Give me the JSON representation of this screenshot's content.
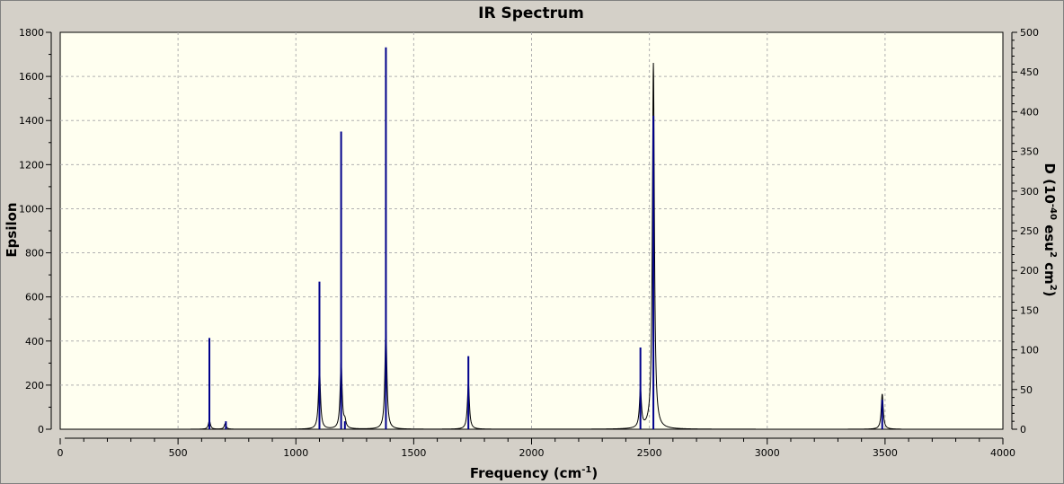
{
  "chart_data": {
    "type": "line",
    "title": "IR Spectrum",
    "xlabel": "Frequency (cm",
    "xlabel_sup": "-1",
    "xlabel_end": ")",
    "ylabel_left": "Epsilon",
    "ylabel_right": {
      "prefix": "D (10",
      "sup1": "-40",
      "mid": " esu",
      "sup2": "2",
      "mid2": " cm",
      "sup3": "2",
      "suffix": ")"
    },
    "xlim": [
      0,
      4000
    ],
    "ylim_left": [
      0,
      1800
    ],
    "ylim_right": [
      0,
      500
    ],
    "x_ticks": [
      0,
      500,
      1000,
      1500,
      2000,
      2500,
      3000,
      3500,
      4000
    ],
    "y_ticks_left": [
      0,
      200,
      400,
      600,
      800,
      1000,
      1200,
      1400,
      1600,
      1800
    ],
    "y_ticks_right": [
      0,
      50,
      100,
      150,
      200,
      250,
      300,
      350,
      400,
      450,
      500
    ],
    "grid": true,
    "series": [
      {
        "kind": "epsilon_curve",
        "axis": "left",
        "range": [
          315,
          3570
        ],
        "peaks": [
          {
            "x": 633,
            "y": 40
          },
          {
            "x": 700,
            "y": 25
          },
          {
            "x": 1100,
            "y": 280
          },
          {
            "x": 1192,
            "y": 305
          },
          {
            "x": 1208,
            "y": 30
          },
          {
            "x": 1382,
            "y": 460
          },
          {
            "x": 1732,
            "y": 210
          },
          {
            "x": 2462,
            "y": 175
          },
          {
            "x": 2517,
            "y": 1660
          },
          {
            "x": 3488,
            "y": 160
          }
        ]
      },
      {
        "kind": "dipole_sticks",
        "axis": "right",
        "sticks": [
          {
            "x": 633,
            "y": 115
          },
          {
            "x": 703,
            "y": 10
          },
          {
            "x": 1100,
            "y": 186
          },
          {
            "x": 1192,
            "y": 375
          },
          {
            "x": 1208,
            "y": 10
          },
          {
            "x": 1382,
            "y": 481
          },
          {
            "x": 1732,
            "y": 92
          },
          {
            "x": 2462,
            "y": 103
          },
          {
            "x": 2517,
            "y": 395
          },
          {
            "x": 3488,
            "y": 37
          }
        ]
      }
    ],
    "colors": {
      "plot_bg": "#fffff0",
      "window_bg": "#d4d0c8",
      "curve": "#000000",
      "sticks": "#00008b",
      "grid": "#b0b0b0"
    }
  }
}
